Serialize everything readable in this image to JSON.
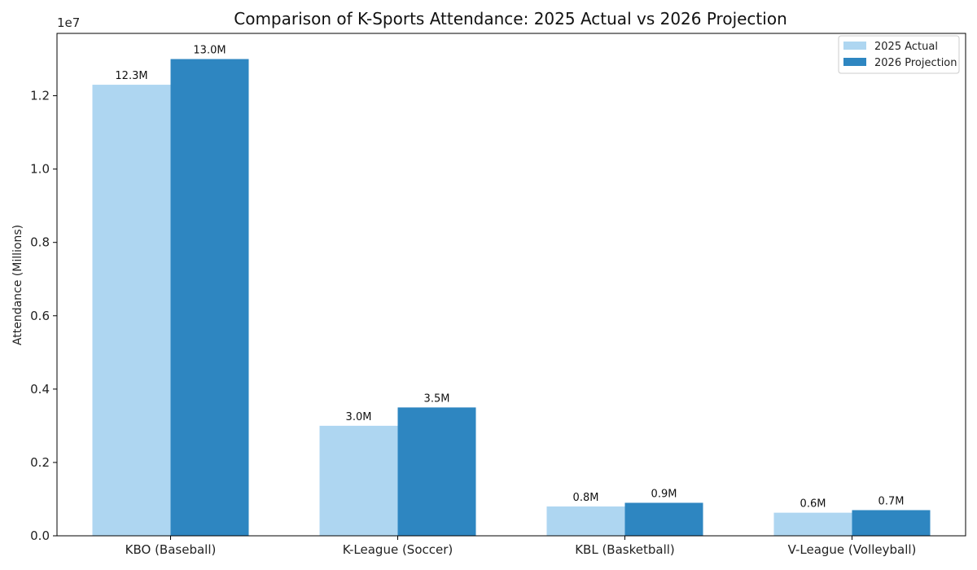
{
  "chart_data": {
    "type": "bar",
    "title": "Comparison of K-Sports Attendance: 2025 Actual vs 2026 Projection",
    "xlabel": "",
    "ylabel": "Attendance (Millions)",
    "y_offset_label": "1e7",
    "ylim": [
      0,
      13700000
    ],
    "y_ticks": [
      0,
      2000000,
      4000000,
      6000000,
      8000000,
      10000000,
      12000000
    ],
    "y_tick_labels": [
      "0.0",
      "0.2",
      "0.4",
      "0.6",
      "0.8",
      "1.0",
      "1.2"
    ],
    "categories": [
      "KBO (Baseball)",
      "K-League (Soccer)",
      "KBL (Basketball)",
      "V-League (Volleyball)"
    ],
    "series": [
      {
        "name": "2025 Actual",
        "color": "#aed6f1",
        "values": [
          12300000,
          3000000,
          800000,
          630000
        ],
        "labels": [
          "12.3M",
          "3.0M",
          "0.8M",
          "0.6M"
        ]
      },
      {
        "name": "2026 Projection",
        "color": "#2e86c1",
        "values": [
          13000000,
          3500000,
          900000,
          700000
        ],
        "labels": [
          "13.0M",
          "3.5M",
          "0.9M",
          "0.7M"
        ]
      }
    ],
    "legend_position": "top-right",
    "grid": false
  }
}
